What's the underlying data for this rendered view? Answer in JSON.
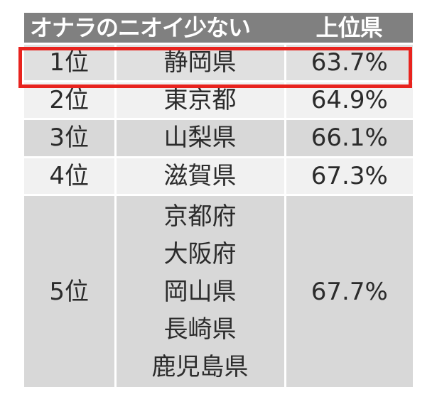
{
  "table": {
    "header": {
      "title": "オナラのニオイ少ない",
      "rank_heading": "上位県"
    },
    "rows": [
      {
        "rank": "1位",
        "prefectures": [
          "静岡県"
        ],
        "percent": "63.7%",
        "highlighted": true
      },
      {
        "rank": "2位",
        "prefectures": [
          "東京都"
        ],
        "percent": "64.9%"
      },
      {
        "rank": "3位",
        "prefectures": [
          "山梨県"
        ],
        "percent": "66.1%"
      },
      {
        "rank": "4位",
        "prefectures": [
          "滋賀県"
        ],
        "percent": "67.3%"
      },
      {
        "rank": "5位",
        "prefectures": [
          "京都府",
          "大阪府",
          "岡山県",
          "長崎県",
          "鹿児島県"
        ],
        "percent": "67.7%"
      }
    ]
  },
  "colors": {
    "header_bg": "#808080",
    "row_dark": "#d8d8d8",
    "row_light": "#f1f1f1",
    "highlight_border": "#e8231e"
  }
}
